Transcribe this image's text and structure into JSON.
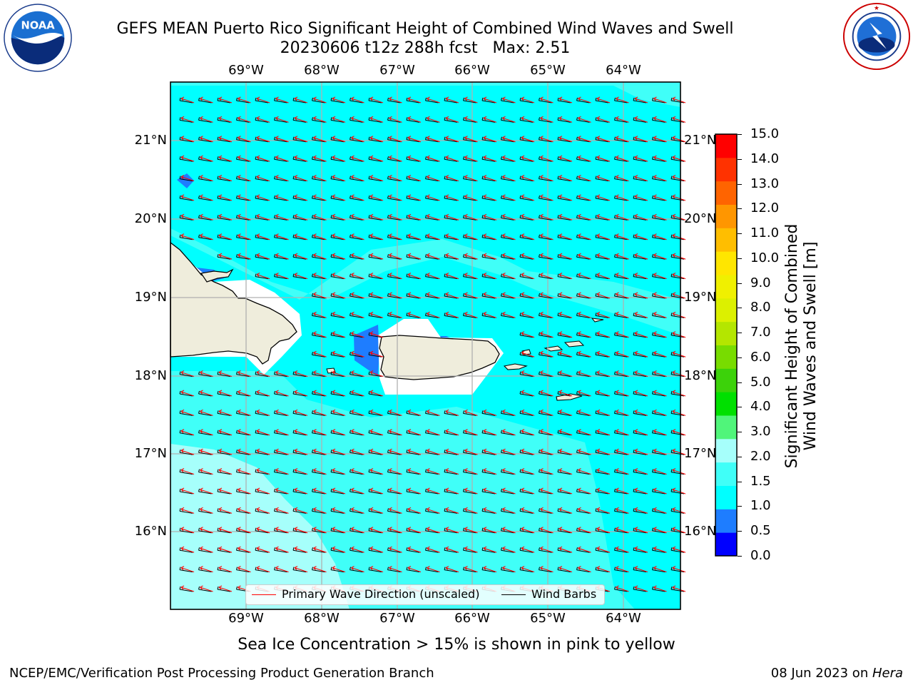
{
  "title": {
    "line1": "GEFS MEAN Puerto Rico Significant Height of Combined Wind Waves and Swell",
    "line2": "20230606 t12z 288h fcst   Max: 2.51"
  },
  "logos": {
    "noaa_text": "NOAA",
    "noaa_ring_text": "NATIONAL OCEANIC AND ATMOSPHERIC ADMINISTRATION · U.S. DEPARTMENT OF COMMERCE",
    "nws_ring_text": "NATIONAL WEATHER SERVICE"
  },
  "map": {
    "lon_labels": [
      "69°W",
      "68°W",
      "67°W",
      "66°W",
      "65°W",
      "64°W"
    ],
    "lat_labels": [
      "21°N",
      "20°N",
      "19°N",
      "18°N",
      "17°N",
      "16°N"
    ],
    "legend": {
      "wave_direction": "Primary Wave Direction (unscaled)",
      "wind_barbs": "Wind Barbs"
    },
    "colors": {
      "land": "#efeddc",
      "ocean_1_1_5": "#00ffff",
      "ocean_1_5_2": "#40fff8",
      "ocean_2_3": "#a6fffb",
      "ocean_0_5_1": "#1e7dff",
      "wave_arrow": "#ff0000",
      "barb": "#000000"
    }
  },
  "colorbar": {
    "ticks": [
      "15.0",
      "14.0",
      "13.0",
      "12.0",
      "11.0",
      "10.0",
      "9.0",
      "8.0",
      "7.0",
      "6.0",
      "5.0",
      "4.0",
      "3.0",
      "2.0",
      "1.5",
      "1.0",
      "0.5",
      "0.0"
    ],
    "label_line1": "Significant Height of Combined",
    "label_line2": "Wind Waves and Swell [m]",
    "colors": [
      "#0000ff",
      "#1e7dff",
      "#00ffff",
      "#40fff8",
      "#a6fffb",
      "#50f57a",
      "#00e000",
      "#3cd20a",
      "#78dc00",
      "#b4e600",
      "#dcf000",
      "#f0f000",
      "#ffe600",
      "#ffbe00",
      "#ff9600",
      "#ff6400",
      "#ff3200",
      "#ff0000"
    ]
  },
  "sea_ice_note": "Sea Ice Concentration > 15% is shown in pink to yellow",
  "footer": {
    "left": "NCEP/EMC/Verification Post Processing Product Generation Branch",
    "right_date": "08 Jun 2023 on ",
    "right_host": "Hera"
  }
}
